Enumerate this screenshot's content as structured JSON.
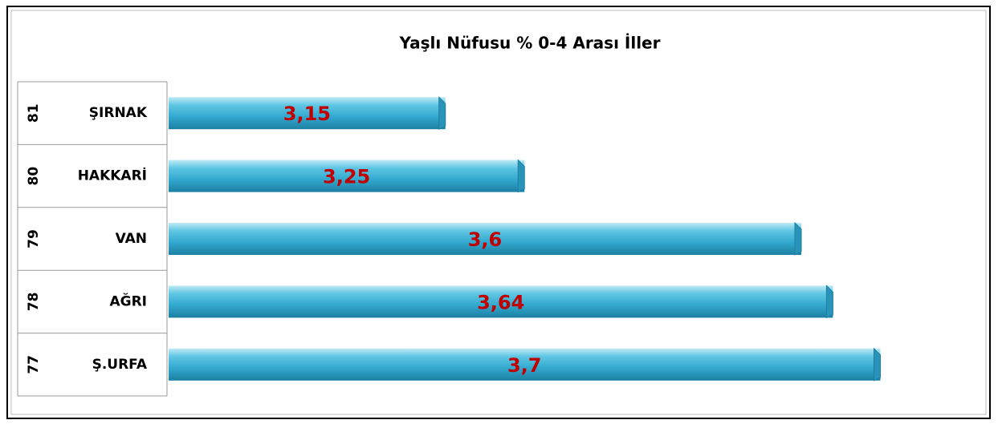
{
  "chart_data": {
    "type": "bar",
    "orientation": "horizontal",
    "title": "Yaşlı Nüfusu % 0-4 Arası İller",
    "ranks": [
      81,
      80,
      79,
      78,
      77
    ],
    "categories": [
      "ŞIRNAK",
      "HAKKARİ",
      "VAN",
      "AĞRI",
      "Ş.URFA"
    ],
    "values": [
      3.15,
      3.25,
      3.6,
      3.64,
      3.7
    ],
    "value_labels": [
      "3,15",
      "3,25",
      "3,6",
      "3,64",
      "3,7"
    ],
    "color": "#3cb3d6",
    "label_color": "#c00000",
    "xlim": [
      2.8,
      3.8
    ]
  }
}
